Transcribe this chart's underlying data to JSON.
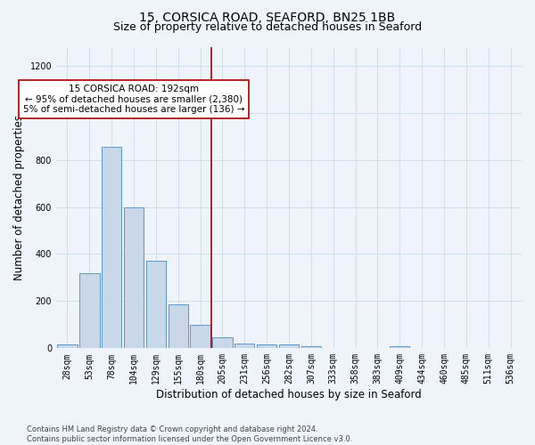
{
  "title1": "15, CORSICA ROAD, SEAFORD, BN25 1BB",
  "title2": "Size of property relative to detached houses in Seaford",
  "xlabel": "Distribution of detached houses by size in Seaford",
  "ylabel": "Number of detached properties",
  "categories": [
    "28sqm",
    "53sqm",
    "78sqm",
    "104sqm",
    "129sqm",
    "155sqm",
    "180sqm",
    "205sqm",
    "231sqm",
    "256sqm",
    "282sqm",
    "307sqm",
    "333sqm",
    "358sqm",
    "383sqm",
    "409sqm",
    "434sqm",
    "460sqm",
    "485sqm",
    "511sqm",
    "536sqm"
  ],
  "values": [
    15,
    320,
    855,
    600,
    370,
    185,
    100,
    47,
    22,
    18,
    18,
    10,
    0,
    0,
    0,
    10,
    0,
    0,
    0,
    0,
    0
  ],
  "bar_color": "#c8d8e8",
  "bar_edge_color": "#5a96c8",
  "grid_color": "#ccddee",
  "bg_color": "#eef4fa",
  "vline_x_index": 7,
  "vline_color": "#aa0000",
  "annotation_text": "15 CORSICA ROAD: 192sqm\n← 95% of detached houses are smaller (2,380)\n5% of semi-detached houses are larger (136) →",
  "annotation_box_color": "white",
  "annotation_box_edge": "#aa0000",
  "ylim": [
    0,
    1280
  ],
  "yticks": [
    0,
    200,
    400,
    600,
    800,
    1000,
    1200
  ],
  "footnote": "Contains HM Land Registry data © Crown copyright and database right 2024.\nContains public sector information licensed under the Open Government Licence v3.0.",
  "title1_fontsize": 10,
  "title2_fontsize": 9,
  "xlabel_fontsize": 8.5,
  "ylabel_fontsize": 8.5,
  "tick_fontsize": 7,
  "annot_fontsize": 7.5,
  "footnote_fontsize": 6
}
